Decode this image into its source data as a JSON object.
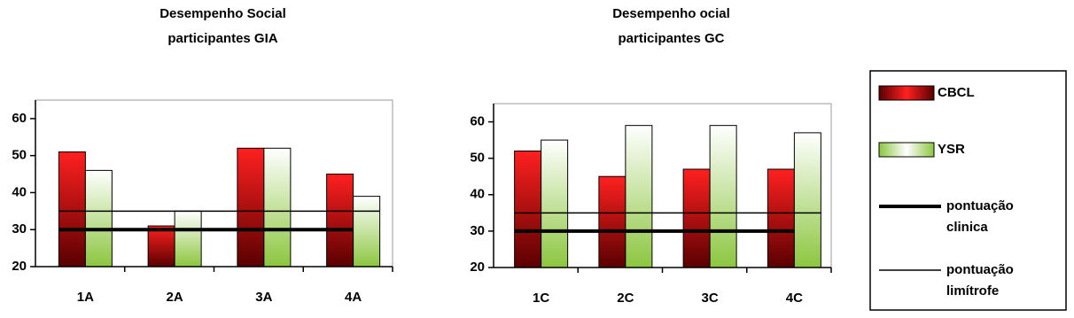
{
  "chart_data": [
    {
      "type": "bar",
      "title": [
        "Desempenho Social",
        "participantes GIA"
      ],
      "categories": [
        "1A",
        "2A",
        "3A",
        "4A"
      ],
      "series": [
        {
          "name": "CBCL",
          "color": "#cc0000",
          "values": [
            51,
            31,
            52,
            45
          ]
        },
        {
          "name": "YSR",
          "color": "#8cc63f",
          "values": [
            46,
            35,
            52,
            39
          ]
        }
      ],
      "reference_lines": [
        {
          "name": "pontuação clinica",
          "value": 30,
          "style": "thick"
        },
        {
          "name": "pontuação limítrofe",
          "value": 35,
          "style": "thin"
        }
      ],
      "ylim": [
        20,
        65
      ],
      "yticks": [
        20,
        30,
        40,
        50,
        60
      ]
    },
    {
      "type": "bar",
      "title": [
        "Desempenho ocial",
        "participantes GC"
      ],
      "categories": [
        "1C",
        "2C",
        "3C",
        "4C"
      ],
      "series": [
        {
          "name": "CBCL",
          "color": "#cc0000",
          "values": [
            52,
            45,
            47,
            47
          ]
        },
        {
          "name": "YSR",
          "color": "#8cc63f",
          "values": [
            55,
            59,
            59,
            57
          ]
        }
      ],
      "reference_lines": [
        {
          "name": "pontuação clinica",
          "value": 30,
          "style": "thick"
        },
        {
          "name": "pontuação limítrofe",
          "value": 35,
          "style": "thin"
        }
      ],
      "ylim": [
        20,
        65
      ],
      "yticks": [
        20,
        30,
        40,
        50,
        60
      ]
    }
  ]
}
